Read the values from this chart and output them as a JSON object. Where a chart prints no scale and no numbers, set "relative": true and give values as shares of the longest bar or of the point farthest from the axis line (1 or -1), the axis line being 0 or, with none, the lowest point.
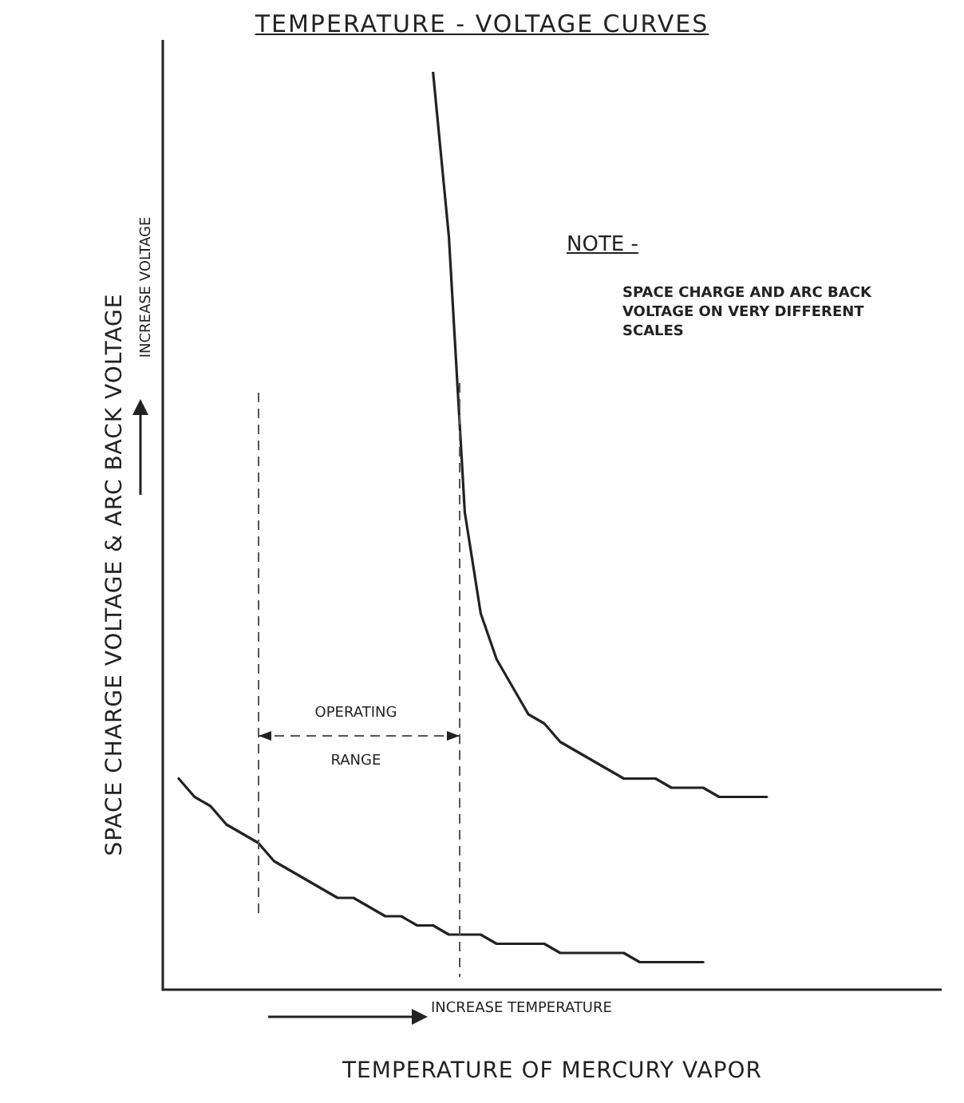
{
  "chart_data": {
    "type": "line",
    "relative": true,
    "title": "TEMPERATURE - VOLTAGE CURVES",
    "xlabel": "TEMPERATURE OF MERCURY VAPOR",
    "ylabel": "SPACE CHARGE VOLTAGE & ARC BACK VOLTAGE",
    "annotations": [
      "INCREASE VOLTAGE",
      "INCREASE TEMPERATURE",
      "NOTE -",
      "SPACE CHARGE AND ARC BACK VOLTAGE ON VERY DIFFERENT SCALES",
      "OPERATING RANGE"
    ],
    "categories": [
      null,
      null,
      null,
      null,
      null,
      null,
      null,
      null,
      null,
      null,
      null,
      null,
      null,
      null,
      null,
      null,
      null,
      null,
      null,
      null,
      null,
      null,
      null,
      null,
      null,
      null,
      null,
      null,
      null,
      null,
      null,
      null,
      null,
      null,
      null,
      null,
      null,
      null,
      null,
      null,
      null,
      null,
      null,
      null,
      null,
      null,
      null,
      null,
      null,
      null
    ],
    "series": [
      {
        "color": "#222222",
        "values": [
          null,
          null,
          null,
          null,
          null,
          null,
          null,
          null,
          null,
          null,
          null,
          null,
          null,
          null,
          null,
          null,
          null,
          1,
          0.82,
          0.52,
          0.41,
          0.36,
          0.33,
          0.3,
          0.29,
          0.27,
          0.26,
          0.25,
          0.24,
          0.23,
          0.23,
          0.23,
          0.22,
          0.22,
          0.22,
          0.21,
          0.21,
          0.21,
          0.21,
          null,
          null,
          null,
          null,
          null,
          null,
          null,
          null,
          null,
          null,
          null
        ]
      },
      {
        "color": "#222222",
        "values": [
          null,
          0.23,
          0.21,
          0.2,
          0.18,
          0.17,
          0.16,
          0.14,
          0.13,
          0.12,
          0.11,
          0.1,
          0.1,
          0.09,
          0.08,
          0.08,
          0.07,
          0.07,
          0.06,
          0.06,
          0.06,
          0.05,
          0.05,
          0.05,
          0.05,
          0.04,
          0.04,
          0.04,
          0.04,
          0.04,
          0.03,
          0.03,
          0.03,
          0.03,
          0.03,
          null,
          null,
          null,
          null,
          null,
          null,
          null,
          null,
          null,
          null,
          null,
          null,
          null,
          null,
          null
        ]
      }
    ],
    "legend": false,
    "marker": "none",
    "line_style": "solid"
  }
}
